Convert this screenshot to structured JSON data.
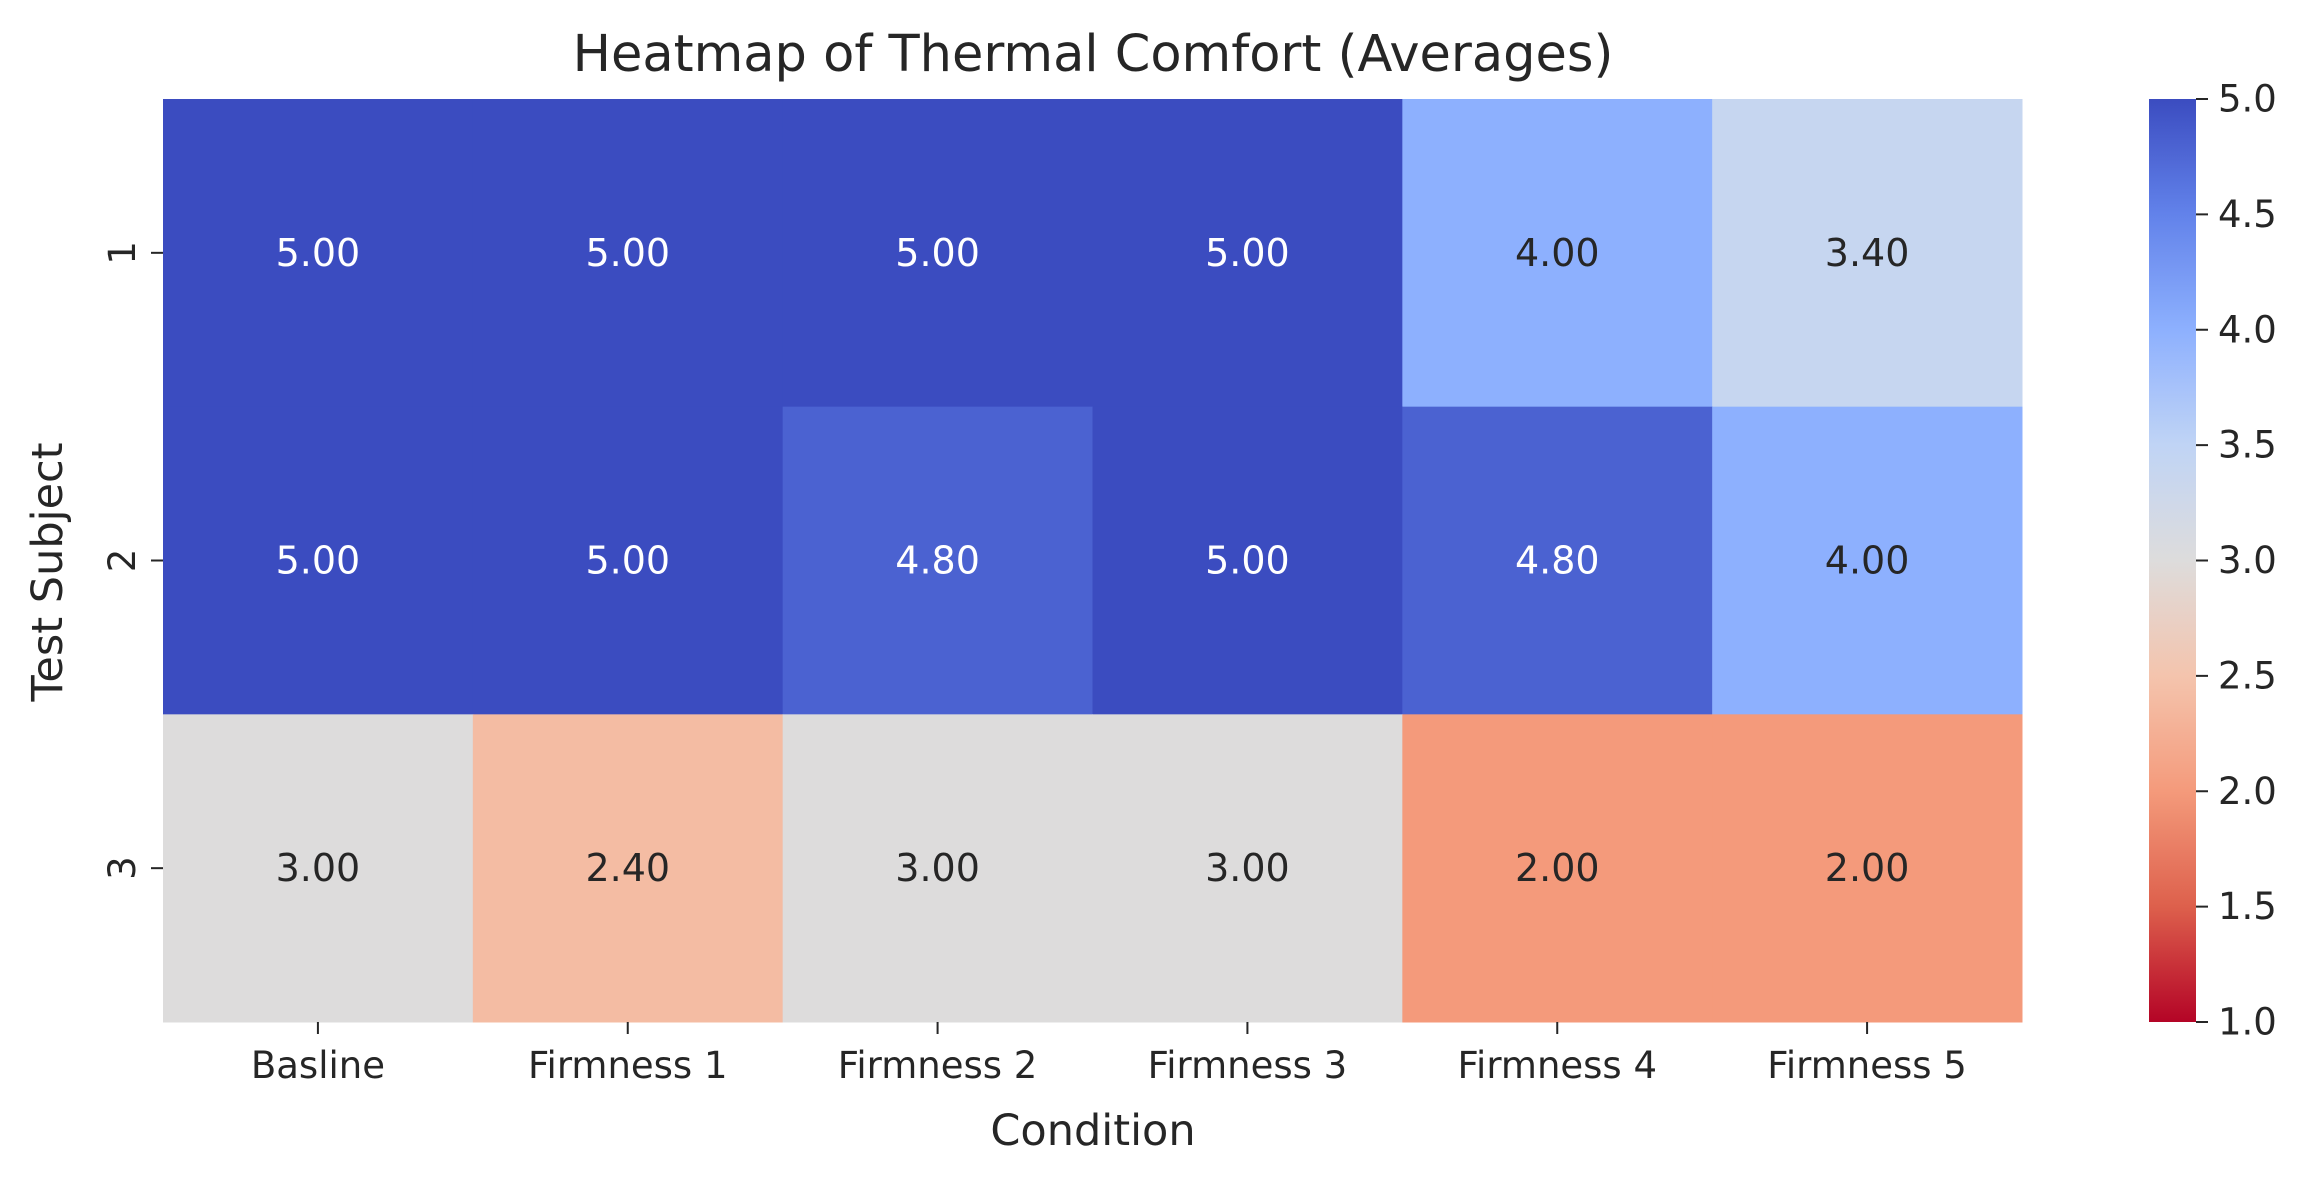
{
  "chart_data": {
    "type": "heatmap",
    "title": "Heatmap of Thermal Comfort (Averages)",
    "xlabel": "Condition",
    "ylabel": "Test Subject",
    "x_categories": [
      "Basline",
      "Firmness 1",
      "Firmness 2",
      "Firmness 3",
      "Firmness 4",
      "Firmness 5"
    ],
    "y_categories": [
      "1",
      "2",
      "3"
    ],
    "values": [
      [
        5.0,
        5.0,
        5.0,
        5.0,
        4.0,
        3.4
      ],
      [
        5.0,
        5.0,
        4.8,
        5.0,
        4.8,
        4.0
      ],
      [
        3.0,
        2.4,
        3.0,
        3.0,
        2.0,
        2.0
      ]
    ],
    "cell_labels": [
      [
        "5.00",
        "5.00",
        "5.00",
        "5.00",
        "4.00",
        "3.40"
      ],
      [
        "5.00",
        "5.00",
        "4.80",
        "5.00",
        "4.80",
        "4.00"
      ],
      [
        "3.00",
        "2.40",
        "3.00",
        "3.00",
        "2.00",
        "2.00"
      ]
    ],
    "colormap": "coolwarm_r",
    "vmin": 1.0,
    "vmax": 5.0,
    "colorbar_ticks": [
      1.0,
      1.5,
      2.0,
      2.5,
      3.0,
      3.5,
      4.0,
      4.5,
      5.0
    ],
    "colorbar_tick_labels": [
      "1.0",
      "1.5",
      "2.0",
      "2.5",
      "3.0",
      "3.5",
      "4.0",
      "4.5",
      "5.0"
    ],
    "colors": {
      "low": "#b40426",
      "mid": "#dddcdc",
      "high": "#3b4cc0"
    }
  }
}
